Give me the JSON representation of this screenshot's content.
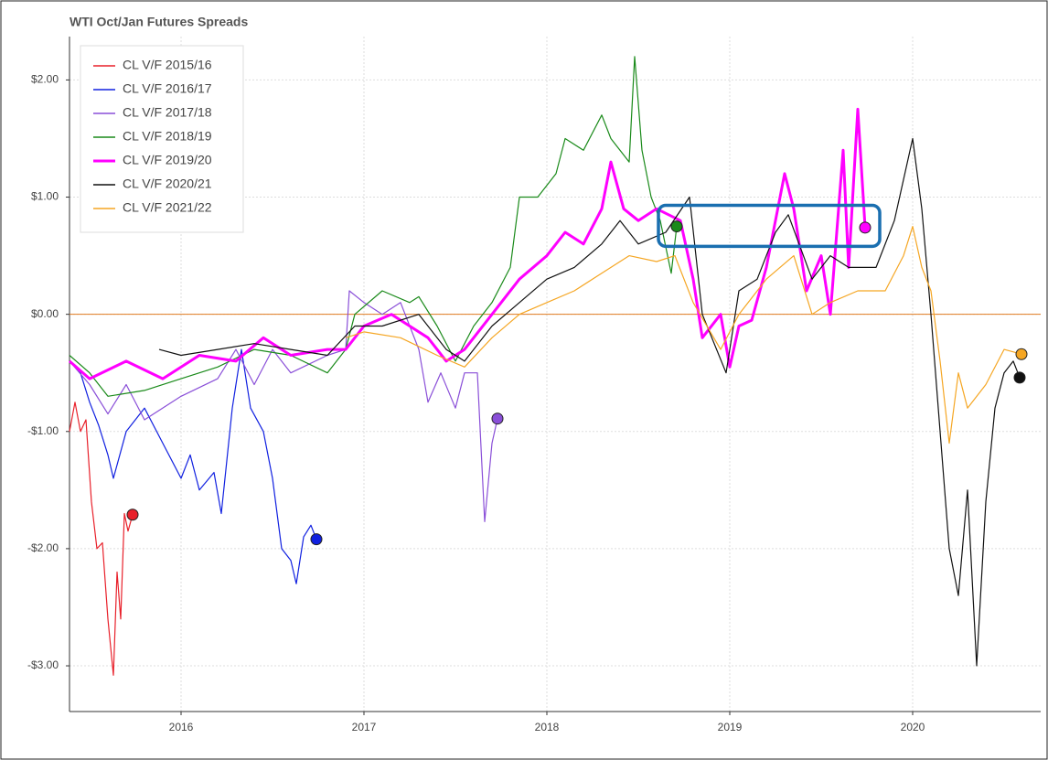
{
  "chart_data": {
    "type": "line",
    "title": "WTI Oct/Jan Futures Spreads",
    "xlim": [
      2015.39,
      2020.7
    ],
    "xticks": [
      2016,
      2017,
      2018,
      2019,
      2020
    ],
    "ylim": [
      -3.39,
      2.37
    ],
    "yticks": [
      {
        "value": 2,
        "label": "$2.00"
      },
      {
        "value": 1,
        "label": "$1.00"
      },
      {
        "value": 0,
        "label": "$0.00"
      },
      {
        "value": -1,
        "label": "-$1.00"
      },
      {
        "value": -2,
        "label": "-$2.00"
      },
      {
        "value": -3,
        "label": "-$3.00"
      }
    ],
    "grid": true,
    "legend": "upper left",
    "hline": 0,
    "hline_color": "#e07b20",
    "highlight_box": {
      "x0": 2018.61,
      "x1": 2019.82,
      "y0": 0.58,
      "y1": 0.93,
      "color": "#1a6fb0"
    },
    "series": [
      {
        "name": "CL V/F 2015/16",
        "color": "#e8202a",
        "x": [
          2015.39,
          2015.42,
          2015.45,
          2015.48,
          2015.51,
          2015.54,
          2015.57,
          2015.6,
          2015.63,
          2015.65,
          2015.67,
          2015.69,
          2015.71,
          2015.735
        ],
        "values": [
          -1.0,
          -0.75,
          -1.0,
          -0.9,
          -1.6,
          -2.0,
          -1.95,
          -2.6,
          -3.08,
          -2.2,
          -2.6,
          -1.7,
          -1.85,
          -1.71
        ]
      },
      {
        "name": "CL V/F 2016/17",
        "color": "#1020e0",
        "x": [
          2015.39,
          2015.45,
          2015.5,
          2015.55,
          2015.6,
          2015.63,
          2015.7,
          2015.8,
          2015.9,
          2016.0,
          2016.05,
          2016.1,
          2016.18,
          2016.22,
          2016.28,
          2016.33,
          2016.38,
          2016.45,
          2016.5,
          2016.55,
          2016.6,
          2016.63,
          2016.67,
          2016.71,
          2016.74
        ],
        "values": [
          -0.4,
          -0.5,
          -0.75,
          -0.95,
          -1.2,
          -1.4,
          -1.0,
          -0.8,
          -1.1,
          -1.4,
          -1.2,
          -1.5,
          -1.35,
          -1.7,
          -0.8,
          -0.3,
          -0.8,
          -1.0,
          -1.4,
          -2.0,
          -2.1,
          -2.3,
          -1.9,
          -1.8,
          -1.92
        ]
      },
      {
        "name": "CL V/F 2017/18",
        "color": "#8a4fd8",
        "x": [
          2015.39,
          2015.5,
          2015.6,
          2015.7,
          2015.8,
          2016.0,
          2016.2,
          2016.3,
          2016.4,
          2016.5,
          2016.6,
          2016.8,
          2016.9,
          2016.92,
          2017.0,
          2017.1,
          2017.2,
          2017.3,
          2017.35,
          2017.42,
          2017.5,
          2017.55,
          2017.62,
          2017.66,
          2017.7,
          2017.73
        ],
        "values": [
          -0.4,
          -0.6,
          -0.85,
          -0.6,
          -0.9,
          -0.7,
          -0.55,
          -0.3,
          -0.6,
          -0.3,
          -0.5,
          -0.35,
          -0.3,
          0.2,
          0.1,
          0.0,
          0.1,
          -0.3,
          -0.75,
          -0.5,
          -0.8,
          -0.5,
          -0.5,
          -1.77,
          -1.1,
          -0.89
        ]
      },
      {
        "name": "CL V/F 2018/19",
        "color": "#1a8a1a",
        "x": [
          2015.39,
          2015.5,
          2015.6,
          2015.8,
          2016.0,
          2016.2,
          2016.4,
          2016.6,
          2016.8,
          2016.9,
          2016.95,
          2017.1,
          2017.25,
          2017.3,
          2017.4,
          2017.5,
          2017.6,
          2017.7,
          2017.8,
          2017.85,
          2017.95,
          2018.05,
          2018.1,
          2018.2,
          2018.3,
          2018.35,
          2018.45,
          2018.48,
          2018.52,
          2018.57,
          2018.62,
          2018.68,
          2018.71
        ],
        "values": [
          -0.35,
          -0.5,
          -0.7,
          -0.65,
          -0.55,
          -0.45,
          -0.3,
          -0.35,
          -0.5,
          -0.3,
          0.0,
          0.2,
          0.1,
          0.15,
          -0.1,
          -0.4,
          -0.1,
          0.1,
          0.4,
          1.0,
          1.0,
          1.2,
          1.5,
          1.4,
          1.7,
          1.5,
          1.3,
          2.2,
          1.4,
          1.0,
          0.8,
          0.35,
          0.75
        ]
      },
      {
        "name": "CL V/F 2019/20",
        "color": "#ff00ff",
        "x": [
          2015.39,
          2015.5,
          2015.7,
          2015.9,
          2016.1,
          2016.3,
          2016.45,
          2016.6,
          2016.8,
          2016.9,
          2017.0,
          2017.15,
          2017.25,
          2017.35,
          2017.45,
          2017.55,
          2017.7,
          2017.85,
          2018.0,
          2018.1,
          2018.2,
          2018.3,
          2018.35,
          2018.42,
          2018.5,
          2018.6,
          2018.73,
          2018.8,
          2018.85,
          2018.95,
          2019.0,
          2019.05,
          2019.12,
          2019.2,
          2019.3,
          2019.35,
          2019.42,
          2019.5,
          2019.55,
          2019.62,
          2019.65,
          2019.7,
          2019.74
        ],
        "values": [
          -0.4,
          -0.55,
          -0.4,
          -0.55,
          -0.35,
          -0.4,
          -0.2,
          -0.35,
          -0.3,
          -0.3,
          -0.1,
          0.0,
          -0.1,
          -0.2,
          -0.4,
          -0.3,
          0.0,
          0.3,
          0.5,
          0.7,
          0.6,
          0.9,
          1.3,
          0.9,
          0.8,
          0.9,
          0.8,
          0.3,
          -0.2,
          0.0,
          -0.45,
          -0.1,
          -0.05,
          0.4,
          1.2,
          0.9,
          0.2,
          0.5,
          0.0,
          1.4,
          0.4,
          1.75,
          0.74
        ]
      },
      {
        "name": "CL V/F 2020/21",
        "color": "#111111",
        "x": [
          2015.88,
          2016.0,
          2016.2,
          2016.4,
          2016.6,
          2016.8,
          2016.95,
          2017.1,
          2017.3,
          2017.45,
          2017.55,
          2017.7,
          2017.85,
          2018.0,
          2018.15,
          2018.3,
          2018.4,
          2018.5,
          2018.65,
          2018.78,
          2018.85,
          2018.98,
          2019.05,
          2019.15,
          2019.25,
          2019.32,
          2019.45,
          2019.55,
          2019.65,
          2019.8,
          2019.9,
          2020.0,
          2020.05,
          2020.1,
          2020.15,
          2020.2,
          2020.25,
          2020.3,
          2020.35,
          2020.4,
          2020.45,
          2020.5,
          2020.55,
          2020.585
        ],
        "values": [
          -0.3,
          -0.35,
          -0.3,
          -0.25,
          -0.3,
          -0.35,
          -0.1,
          -0.1,
          0.0,
          -0.3,
          -0.4,
          -0.1,
          0.1,
          0.3,
          0.4,
          0.6,
          0.8,
          0.6,
          0.7,
          1.0,
          0.0,
          -0.5,
          0.2,
          0.3,
          0.7,
          0.85,
          0.3,
          0.5,
          0.4,
          0.4,
          0.8,
          1.5,
          0.9,
          0.0,
          -1.0,
          -2.0,
          -2.4,
          -1.5,
          -3.0,
          -1.6,
          -0.8,
          -0.5,
          -0.4,
          -0.54
        ]
      },
      {
        "name": "CL V/F 2021/22",
        "color": "#f5a623",
        "x": [
          2016.9,
          2017.0,
          2017.2,
          2017.4,
          2017.55,
          2017.7,
          2017.85,
          2018.0,
          2018.15,
          2018.3,
          2018.45,
          2018.6,
          2018.7,
          2018.8,
          2018.95,
          2019.05,
          2019.2,
          2019.35,
          2019.45,
          2019.55,
          2019.7,
          2019.85,
          2019.95,
          2020.0,
          2020.05,
          2020.1,
          2020.15,
          2020.2,
          2020.25,
          2020.3,
          2020.4,
          2020.5,
          2020.595
        ],
        "values": [
          -0.2,
          -0.15,
          -0.2,
          -0.35,
          -0.45,
          -0.2,
          0.0,
          0.1,
          0.2,
          0.35,
          0.5,
          0.45,
          0.5,
          0.1,
          -0.3,
          0.0,
          0.3,
          0.5,
          0.0,
          0.1,
          0.2,
          0.2,
          0.5,
          0.75,
          0.4,
          0.2,
          -0.4,
          -1.1,
          -0.5,
          -0.8,
          -0.6,
          -0.3,
          -0.34
        ]
      }
    ]
  }
}
